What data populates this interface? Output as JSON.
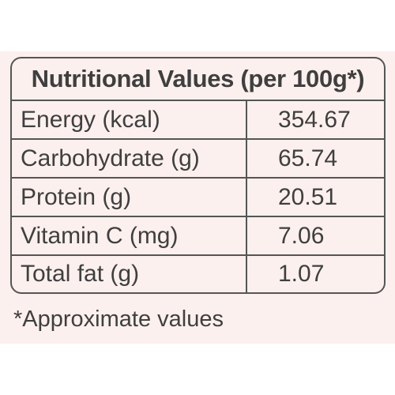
{
  "table": {
    "title": "Nutritional Values (per 100g*)",
    "rows": [
      {
        "label": "Energy (kcal)",
        "value": "354.67"
      },
      {
        "label": "Carbohydrate (g)",
        "value": "65.74"
      },
      {
        "label": "Protein (g)",
        "value": "20.51"
      },
      {
        "label": "Vitamin C (mg)",
        "value": "7.06"
      },
      {
        "label": "Total fat (g)",
        "value": "1.07"
      }
    ]
  },
  "footnote": "*Approximate values",
  "colors": {
    "background": "#fcf0ee",
    "border": "#555555",
    "text": "#3f3f3f"
  }
}
